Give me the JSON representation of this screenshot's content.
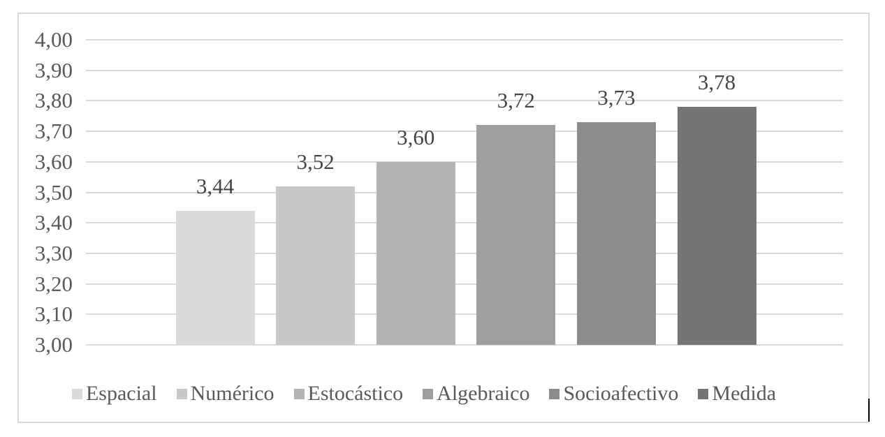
{
  "chart_data": {
    "type": "bar",
    "title": "",
    "xlabel": "",
    "ylabel": "",
    "categories": [
      "Espacial",
      "Numérico",
      "Estocástico",
      "Algebraico",
      "Socioafectivo",
      "Medida"
    ],
    "values": [
      3.44,
      3.52,
      3.6,
      3.72,
      3.73,
      3.78
    ],
    "value_labels": [
      "3,44",
      "3,52",
      "3,60",
      "3,72",
      "3,73",
      "3,78"
    ],
    "series_colors": [
      "#d9d9d9",
      "#c8c8c8",
      "#b3b3b3",
      "#9e9e9e",
      "#8c8c8c",
      "#757575"
    ],
    "ylim": [
      3.0,
      4.0
    ],
    "ytick_step": 0.1,
    "ytick_labels": [
      "4,00",
      "3,90",
      "3,80",
      "3,70",
      "3,60",
      "3,50",
      "3,40",
      "3,30",
      "3,20",
      "3,10",
      "3,00"
    ],
    "grid": true,
    "legend_position": "bottom"
  },
  "colors": {
    "background": "#ffffff",
    "frame_border": "#d9d9d9",
    "gridline": "#d9d9d9",
    "tick_text": "#595959",
    "data_label_text": "#454545",
    "legend_text": "#595959",
    "cursor": "#000000"
  }
}
